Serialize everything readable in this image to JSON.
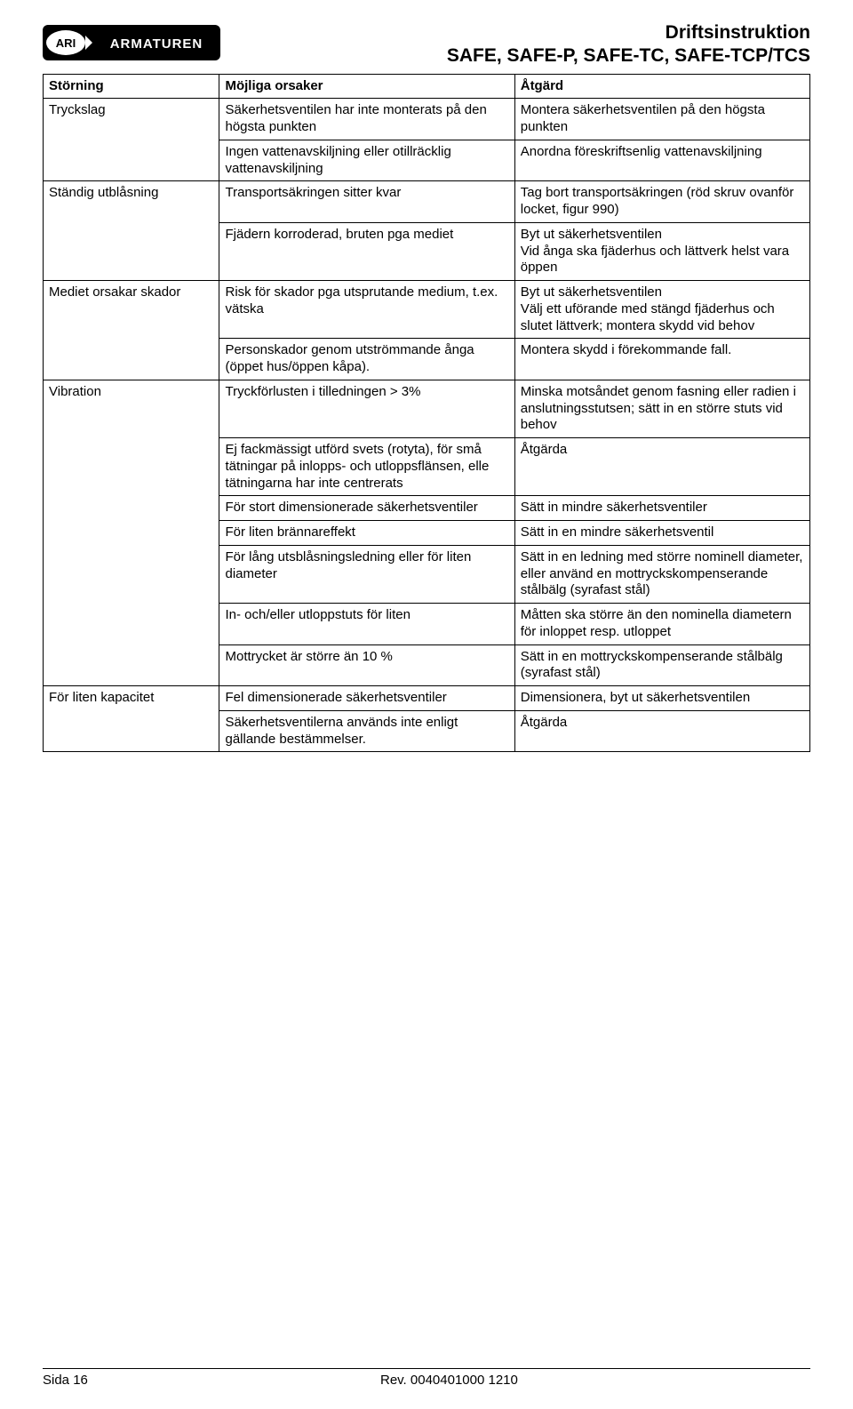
{
  "header": {
    "line1": "Driftsinstruktion",
    "line2": "SAFE, SAFE-P, SAFE-TC, SAFE-TCP/TCS",
    "logo_text": "ARMATUREN",
    "logo_badge": "ARI"
  },
  "colors": {
    "text": "#000000",
    "border": "#000000",
    "background": "#ffffff",
    "logo_bg": "#000000",
    "logo_fg": "#ffffff"
  },
  "typography": {
    "header_fontsize_pt": 16,
    "body_fontsize_pt": 11,
    "font_family": "Arial"
  },
  "table": {
    "headers": [
      "Störning",
      "Möjliga orsaker",
      "Åtgärd"
    ],
    "column_widths_pct": [
      23,
      38.5,
      38.5
    ],
    "groups": [
      {
        "disturbance": "Tryckslag",
        "rows": [
          {
            "cause": "Säkerhetsventilen har inte monterats på den högsta punkten",
            "action": "Montera säkerhetsventilen på den högsta punkten"
          },
          {
            "cause": "Ingen vattenavskiljning eller otillräcklig vattenavskiljning",
            "action": "Anordna föreskriftsenlig vattenavskiljning"
          }
        ]
      },
      {
        "disturbance": "Ständig utblåsning",
        "rows": [
          {
            "cause": "Transportsäkringen sitter kvar",
            "action": "Tag bort transportsäkringen (röd skruv ovanför locket, figur 990)"
          },
          {
            "cause": "Fjädern korroderad, bruten pga mediet",
            "action": "Byt ut säkerhetsventilen\nVid ånga ska fjäderhus och lättverk helst vara öppen"
          }
        ]
      },
      {
        "disturbance": "Mediet orsakar skador",
        "rows": [
          {
            "cause": "Risk för skador pga utsprutande medium, t.ex. vätska",
            "action": "Byt ut säkerhetsventilen\nVälj ett uförande med stängd fjäderhus och slutet lättverk; montera skydd vid behov"
          },
          {
            "cause": "Personskador genom utströmmande ånga (öppet hus/öppen kåpa).",
            "action": "Montera skydd i förekommande fall."
          }
        ]
      },
      {
        "disturbance": "Vibration",
        "rows": [
          {
            "cause": "Tryckförlusten i tilledningen > 3%",
            "action": "Minska motsåndet genom fasning eller radien i anslutningsstutsen; sätt in en större stuts vid behov"
          },
          {
            "cause": "Ej fackmässigt utförd svets (rotyta), för små tätningar på inlopps- och utloppsflänsen, elle tätningarna har inte centrerats",
            "action": "Åtgärda"
          },
          {
            "cause": "För stort dimensionerade säkerhetsventiler",
            "action": "Sätt in mindre säkerhetsventiler"
          },
          {
            "cause": "För liten brännareffekt",
            "action": "Sätt in en mindre säkerhetsventil"
          },
          {
            "cause": "För lång utsblåsningsledning eller för liten diameter",
            "action": "Sätt in en ledning med större nominell diameter, eller använd en mottryckskompenserande stålbälg (syrafast stål)"
          },
          {
            "cause": "In- och/eller utloppstuts för liten",
            "action": "Måtten ska större än den nominella diametern för inloppet resp. utloppet"
          },
          {
            "cause": "Mottrycket är större än 10 %",
            "action": "Sätt in en mottryckskompenserande stålbälg (syrafast stål)"
          }
        ]
      },
      {
        "disturbance": "För liten kapacitet",
        "rows": [
          {
            "cause": "Fel dimensionerade säkerhetsventiler",
            "action": "Dimensionera, byt ut säkerhetsventilen"
          },
          {
            "cause": "Säkerhetsventilerna används inte enligt gällande bestämmelser.",
            "action": "Åtgärda"
          }
        ]
      }
    ]
  },
  "footer": {
    "page": "Sida 16",
    "rev": "Rev. 0040401000 1210"
  }
}
